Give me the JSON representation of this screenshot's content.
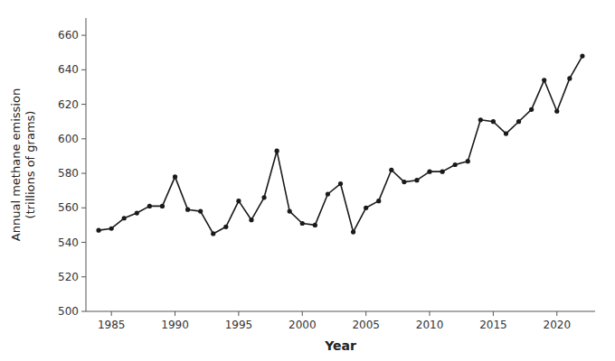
{
  "chart_data": {
    "type": "line",
    "x": [
      1984,
      1985,
      1986,
      1987,
      1988,
      1989,
      1990,
      1991,
      1992,
      1993,
      1994,
      1995,
      1996,
      1997,
      1998,
      1999,
      2000,
      2001,
      2002,
      2003,
      2004,
      2005,
      2006,
      2007,
      2008,
      2009,
      2010,
      2011,
      2012,
      2013,
      2014,
      2015,
      2016,
      2017,
      2018,
      2019,
      2020,
      2021,
      2022
    ],
    "values": [
      547,
      548,
      554,
      557,
      561,
      561,
      578,
      559,
      558,
      545,
      549,
      564,
      553,
      566,
      593,
      558,
      551,
      550,
      568,
      574,
      546,
      560,
      564,
      582,
      575,
      576,
      581,
      581,
      585,
      587,
      611,
      610,
      603,
      610,
      617,
      634,
      616,
      635,
      648
    ],
    "xlabel": "Year",
    "ylabel": "Annual methane emission\n(trillions of grams)",
    "xlim": [
      1983,
      2023
    ],
    "ylim": [
      500,
      670
    ],
    "xticks": [
      1985,
      1990,
      1995,
      2000,
      2005,
      2010,
      2015,
      2020
    ],
    "yticks": [
      500,
      520,
      540,
      560,
      580,
      600,
      620,
      640,
      660
    ],
    "color": "#1a1a1a",
    "marker": "circle"
  }
}
